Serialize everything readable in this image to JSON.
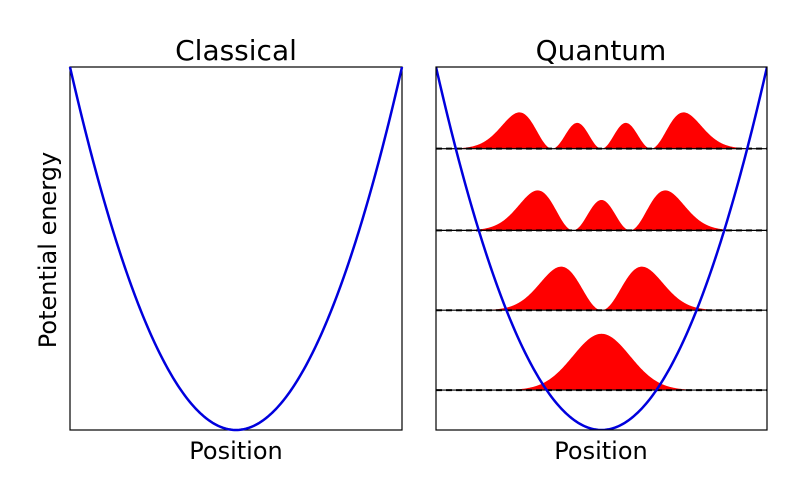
{
  "chart_data": [
    {
      "type": "line",
      "title": "Classical",
      "xlabel": "Position",
      "ylabel": "Potential energy",
      "xticks": false,
      "yticks": false,
      "grid": false,
      "xlim": [
        -1,
        1
      ],
      "ylim": [
        0,
        1
      ],
      "series": [
        {
          "kind": "potential",
          "function": "x^2",
          "x_range": [
            -1,
            1
          ],
          "color": "#0000dd"
        }
      ]
    },
    {
      "type": "area",
      "title": "Quantum",
      "xlabel": "Position",
      "xticks": false,
      "yticks": false,
      "grid": false,
      "xlim": [
        -1,
        1
      ],
      "ylim": [
        0,
        1
      ],
      "energy_levels": [
        0.11,
        0.33,
        0.55,
        0.775
      ],
      "series": [
        {
          "kind": "potential",
          "function": "x^2",
          "x_range": [
            -1,
            1
          ],
          "color": "#0000dd"
        },
        {
          "kind": "probability_density",
          "n": 0,
          "baseline": 0.11,
          "peak_height": 0.155,
          "color": "#ff0000"
        },
        {
          "kind": "probability_density",
          "n": 1,
          "baseline": 0.33,
          "peak_height": 0.12,
          "color": "#ff0000"
        },
        {
          "kind": "probability_density",
          "n": 2,
          "baseline": 0.55,
          "peak_height": 0.11,
          "color": "#ff0000"
        },
        {
          "kind": "probability_density",
          "n": 3,
          "baseline": 0.775,
          "peak_height": 0.1,
          "color": "#ff0000"
        }
      ],
      "level_line_style": "dashed",
      "level_line_color": "#000000"
    }
  ]
}
